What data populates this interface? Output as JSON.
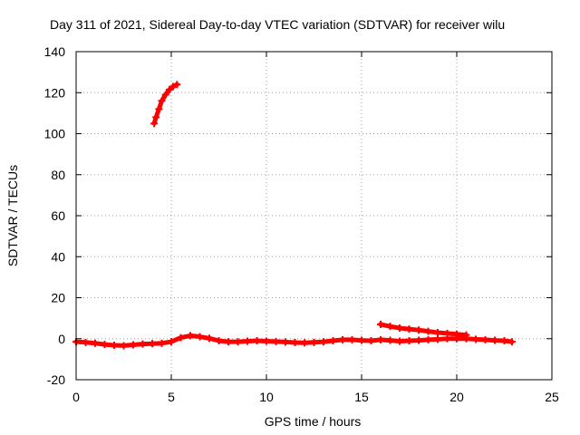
{
  "chart_data": {
    "type": "scatter",
    "title": "Day 311 of 2021, Sidereal Day-to-day VTEC variation (SDTVAR) for receiver wilu",
    "xlabel": "GPS time / hours",
    "ylabel": "SDTVAR / TECUs",
    "xlim": [
      0,
      25
    ],
    "ylim": [
      -20,
      140
    ],
    "xticks": [
      "0",
      "5",
      "10",
      "15",
      "20",
      "25"
    ],
    "yticks": [
      "-20",
      "0",
      "20",
      "40",
      "60",
      "80",
      "100",
      "120",
      "140"
    ],
    "grid": true,
    "legend": "none",
    "series": [
      {
        "color": "#ff0000",
        "segments": [
          {
            "x": [
              0.0,
              0.5,
              1.0,
              1.5,
              2.0,
              2.5,
              3.0,
              3.5,
              4.0,
              4.5,
              5.0,
              5.5,
              6.0,
              6.5,
              7.0,
              7.5,
              8.0,
              8.5,
              9.0,
              9.5,
              10.0,
              10.5,
              11.0,
              11.5,
              12.0,
              12.5,
              13.0,
              13.5,
              14.0,
              14.5,
              15.0,
              15.5,
              16.0,
              16.5,
              17.0,
              17.5,
              18.0,
              18.5,
              19.0,
              19.5,
              20.0,
              20.5,
              21.0,
              21.5,
              22.0,
              22.5,
              22.9
            ],
            "y": [
              -1.5,
              -1.8,
              -2.2,
              -2.8,
              -3.2,
              -3.4,
              -3.0,
              -2.6,
              -2.4,
              -2.2,
              -1.5,
              0.5,
              1.5,
              1.0,
              0.2,
              -1.0,
              -1.5,
              -1.5,
              -1.2,
              -1.0,
              -1.2,
              -1.4,
              -1.6,
              -1.9,
              -2.0,
              -1.8,
              -1.5,
              -1.0,
              -0.5,
              -0.5,
              -0.8,
              -1.0,
              -0.5,
              -0.8,
              -1.2,
              -1.0,
              -0.8,
              -0.5,
              -0.3,
              0.0,
              0.0,
              0.0,
              -0.3,
              -0.5,
              -0.8,
              -1.0,
              -1.5
            ]
          },
          {
            "x": [
              4.1,
              4.2,
              4.35,
              4.5,
              4.7,
              4.9,
              5.1,
              5.3
            ],
            "y": [
              105,
              108,
              112,
              116,
              119,
              121.5,
              123,
              124
            ]
          },
          {
            "x": [
              16.0,
              16.5,
              17.0,
              17.5,
              18.0,
              18.5,
              19.0,
              19.5,
              20.0,
              20.5
            ],
            "y": [
              7,
              6,
              5.2,
              4.7,
              4.2,
              3.6,
              3.0,
              2.6,
              2.2,
              1.8
            ]
          }
        ]
      }
    ]
  }
}
